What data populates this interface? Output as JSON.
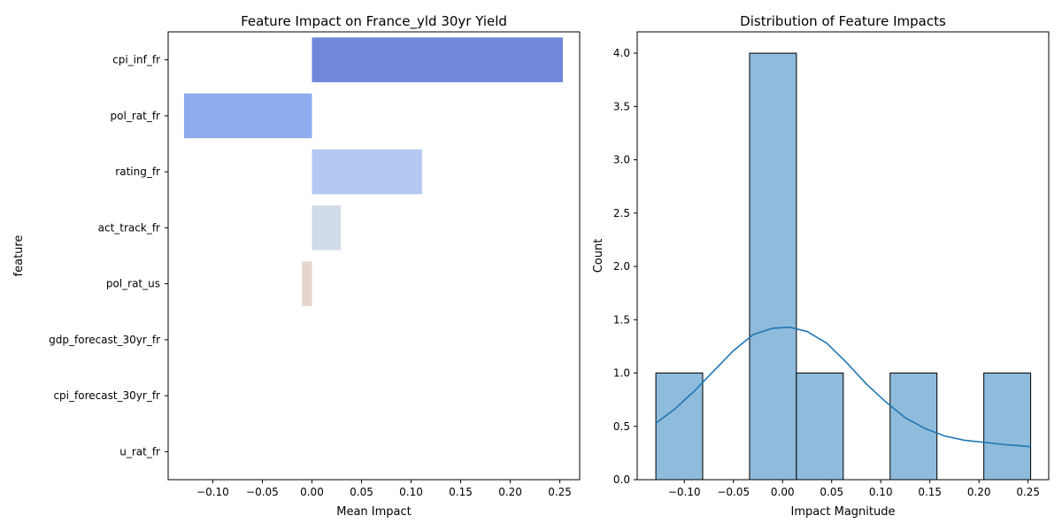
{
  "chart_data": [
    {
      "type": "bar",
      "orientation": "horizontal",
      "title": "Feature Impact on France_yld 30yr Yield",
      "xlabel": "Mean Impact",
      "ylabel": "feature",
      "categories": [
        "cpi_inf_fr",
        "pol_rat_fr",
        "rating_fr",
        "act_track_fr",
        "pol_rat_us",
        "gdp_forecast_30yr_fr",
        "cpi_forecast_30yr_fr",
        "u_rat_fr"
      ],
      "values": [
        0.253,
        -0.129,
        0.111,
        0.029,
        -0.01,
        0.0,
        0.0,
        0.0
      ],
      "colors": [
        "#6f88d9",
        "#8fabef",
        "#b4c8f3",
        "#d2dbe9",
        "#e6d4cf",
        "#ecc7b4",
        "#f0b396",
        "#e58c6b"
      ],
      "xlim": [
        -0.145,
        0.27
      ],
      "xticks": [
        -0.1,
        -0.05,
        0.0,
        0.05,
        0.1,
        0.15,
        0.2,
        0.25
      ],
      "xtick_labels": [
        "−0.10",
        "−0.05",
        "0.00",
        "0.05",
        "0.10",
        "0.15",
        "0.20",
        "0.25"
      ],
      "grid": false
    },
    {
      "type": "histogram",
      "title": "Distribution of Feature Impacts",
      "xlabel": "Impact Magnitude",
      "ylabel": "Count",
      "bins": [
        {
          "x0": -0.129,
          "x1": -0.0813,
          "count": 1
        },
        {
          "x0": -0.0813,
          "x1": -0.0336,
          "count": 0
        },
        {
          "x0": -0.0336,
          "x1": 0.0141,
          "count": 4
        },
        {
          "x0": 0.0141,
          "x1": 0.0618,
          "count": 1
        },
        {
          "x0": 0.0618,
          "x1": 0.1095,
          "count": 0
        },
        {
          "x0": 0.1095,
          "x1": 0.1572,
          "count": 1
        },
        {
          "x0": 0.1572,
          "x1": 0.2049,
          "count": 0
        },
        {
          "x0": 0.2049,
          "x1": 0.2526,
          "count": 1
        }
      ],
      "bar_color": "#8fbbdc",
      "kde_color": "#1f77b4",
      "kde": {
        "x": [
          -0.129,
          -0.11,
          -0.09,
          -0.07,
          -0.05,
          -0.03,
          -0.01,
          0.007,
          0.025,
          0.045,
          0.065,
          0.085,
          0.105,
          0.125,
          0.145,
          0.165,
          0.185,
          0.205,
          0.225,
          0.2526
        ],
        "y": [
          0.53,
          0.66,
          0.83,
          1.02,
          1.21,
          1.36,
          1.42,
          1.43,
          1.39,
          1.28,
          1.1,
          0.9,
          0.73,
          0.58,
          0.48,
          0.41,
          0.37,
          0.35,
          0.33,
          0.31
        ]
      },
      "xlim": [
        -0.148,
        0.271
      ],
      "ylim": [
        0,
        4.2
      ],
      "xticks": [
        -0.1,
        -0.05,
        0.0,
        0.05,
        0.1,
        0.15,
        0.2,
        0.25
      ],
      "xtick_labels": [
        "−0.10",
        "−0.05",
        "0.00",
        "0.05",
        "0.10",
        "0.15",
        "0.20",
        "0.25"
      ],
      "yticks": [
        0.0,
        0.5,
        1.0,
        1.5,
        2.0,
        2.5,
        3.0,
        3.5,
        4.0
      ],
      "ytick_labels": [
        "0.0",
        "0.5",
        "1.0",
        "1.5",
        "2.0",
        "2.5",
        "3.0",
        "3.5",
        "4.0"
      ],
      "grid": false
    }
  ]
}
